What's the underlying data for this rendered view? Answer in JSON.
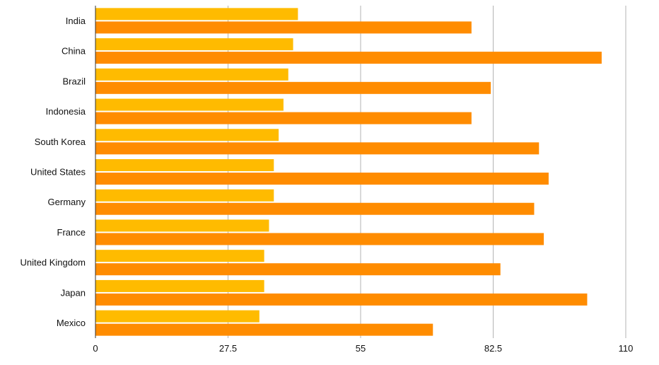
{
  "chart_data": {
    "type": "bar",
    "orientation": "horizontal",
    "categories": [
      "India",
      "China",
      "Brazil",
      "Indonesia",
      "South Korea",
      "United States",
      "Germany",
      "France",
      "United Kingdom",
      "Japan",
      "Mexico"
    ],
    "series": [
      {
        "values": [
          42,
          41,
          40,
          39,
          38,
          37,
          37,
          36,
          35,
          35,
          34
        ],
        "color": "#FFBB00"
      },
      {
        "values": [
          78,
          105,
          82,
          78,
          92,
          94,
          91,
          93,
          84,
          102,
          70
        ],
        "color": "#FF8C00"
      }
    ],
    "xlim": [
      0,
      110
    ],
    "xticks": [
      "0",
      "27.5",
      "55",
      "82.5",
      "110"
    ],
    "grid": true
  }
}
